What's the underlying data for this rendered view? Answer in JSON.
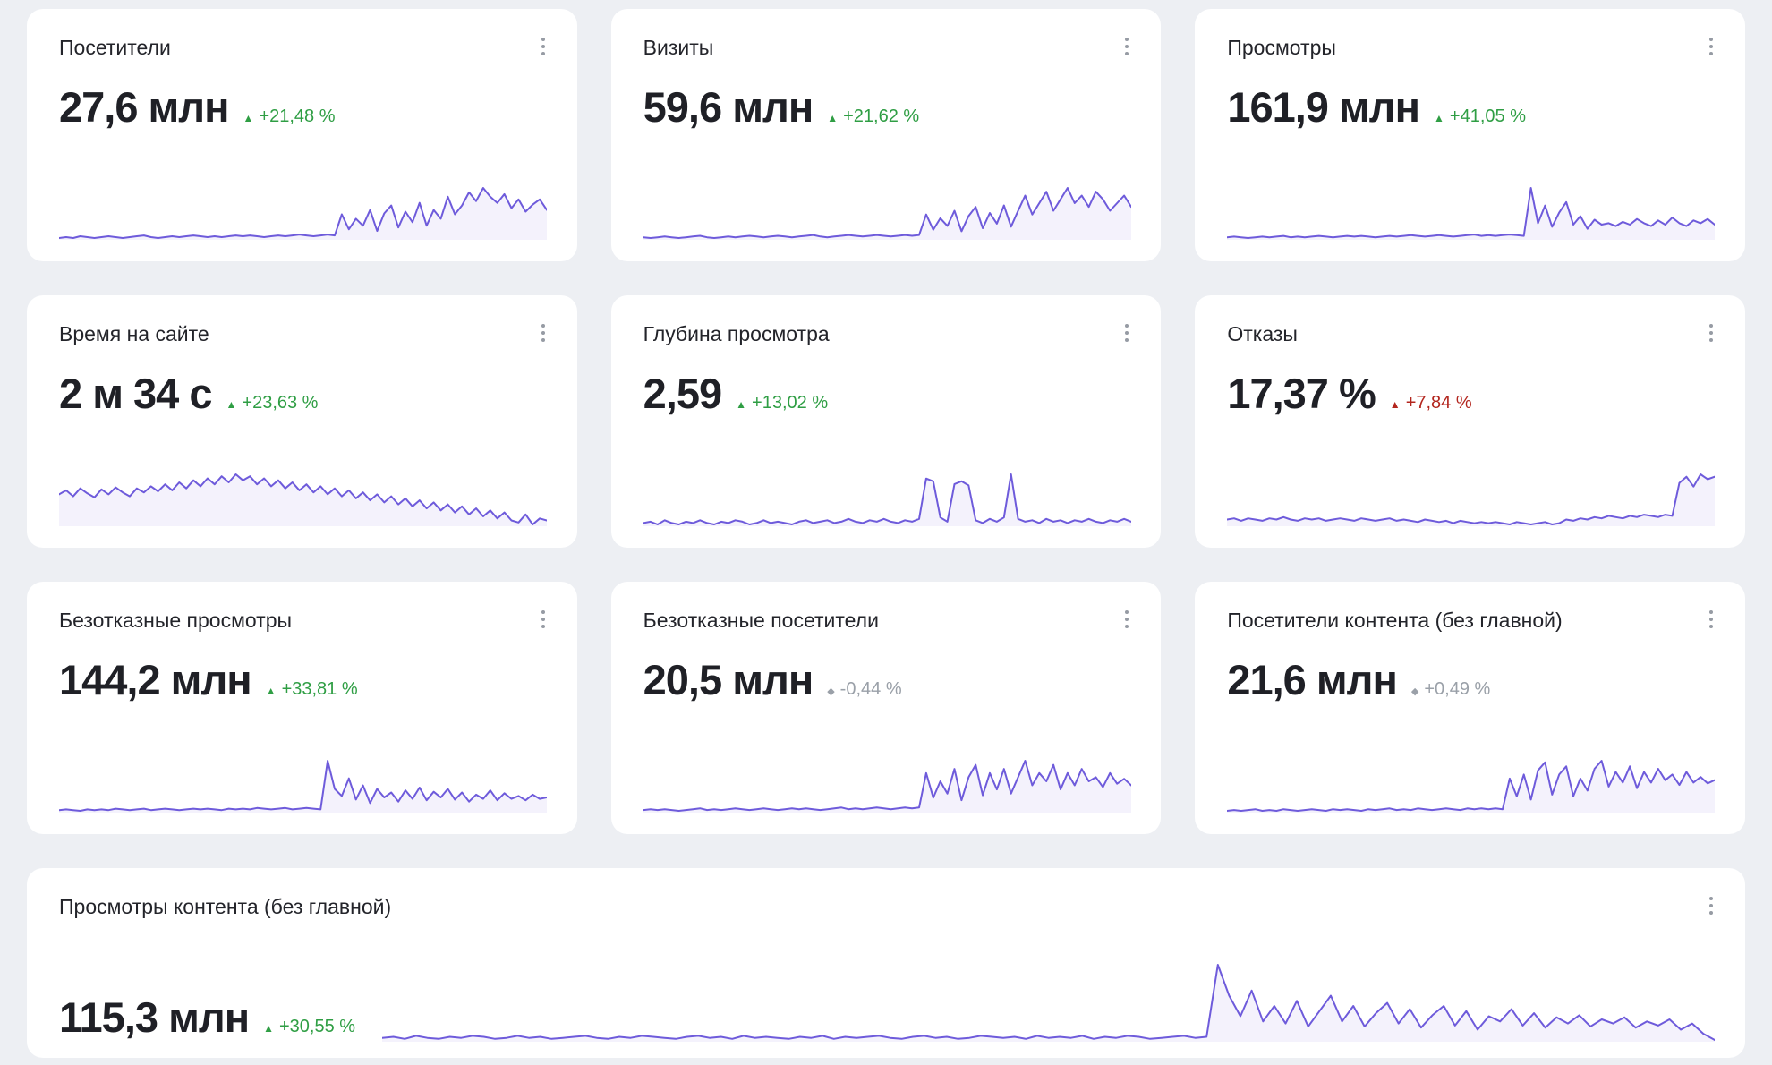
{
  "colors": {
    "spark": "#6e5bdb",
    "positive": "#2f9e44",
    "negative": "#b3261e",
    "neutral": "#9aa0a8",
    "background": "#edeff3"
  },
  "cards": [
    {
      "title": "Посетители",
      "value": "27,6 млн",
      "change": "+21,48 %",
      "marker": "▲",
      "sentiment": "positive",
      "spark": [
        8,
        9,
        8,
        10,
        9,
        8,
        9,
        10,
        9,
        8,
        9,
        10,
        11,
        9,
        8,
        9,
        10,
        9,
        10,
        11,
        10,
        9,
        10,
        9,
        10,
        11,
        10,
        11,
        10,
        9,
        10,
        11,
        10,
        11,
        12,
        11,
        10,
        11,
        12,
        11,
        35,
        18,
        30,
        22,
        40,
        16,
        36,
        45,
        20,
        38,
        26,
        48,
        22,
        40,
        30,
        55,
        35,
        45,
        60,
        50,
        65,
        55,
        48,
        58,
        42,
        52,
        38,
        46,
        52,
        40
      ]
    },
    {
      "title": "Визиты",
      "value": "59,6 млн",
      "change": "+21,62 %",
      "marker": "▲",
      "sentiment": "positive",
      "spark": [
        10,
        9,
        10,
        11,
        10,
        9,
        10,
        11,
        12,
        10,
        9,
        10,
        11,
        10,
        11,
        12,
        11,
        10,
        11,
        12,
        11,
        10,
        11,
        12,
        13,
        11,
        10,
        11,
        12,
        13,
        12,
        11,
        12,
        13,
        12,
        11,
        12,
        13,
        12,
        13,
        40,
        20,
        35,
        25,
        45,
        18,
        38,
        50,
        22,
        42,
        28,
        52,
        24,
        45,
        65,
        40,
        55,
        70,
        45,
        60,
        75,
        55,
        65,
        50,
        70,
        60,
        45,
        55,
        65,
        50
      ]
    },
    {
      "title": "Просмотры",
      "value": "161,9 млн",
      "change": "+41,05 %",
      "marker": "▲",
      "sentiment": "positive",
      "spark": [
        10,
        11,
        10,
        9,
        10,
        11,
        10,
        11,
        12,
        10,
        11,
        10,
        11,
        12,
        11,
        10,
        11,
        12,
        11,
        12,
        11,
        10,
        11,
        12,
        11,
        12,
        13,
        12,
        11,
        12,
        13,
        12,
        11,
        12,
        13,
        14,
        12,
        13,
        12,
        13,
        14,
        13,
        12,
        80,
        30,
        55,
        25,
        45,
        60,
        28,
        40,
        22,
        35,
        28,
        30,
        26,
        32,
        28,
        36,
        30,
        26,
        34,
        28,
        38,
        30,
        26,
        34,
        30,
        36,
        28
      ]
    },
    {
      "title": "Время на сайте",
      "value": "2 м 34 с",
      "change": "+23,63 %",
      "marker": "▲",
      "sentiment": "positive",
      "spark": [
        40,
        44,
        38,
        46,
        41,
        37,
        45,
        40,
        47,
        42,
        38,
        46,
        42,
        48,
        43,
        50,
        44,
        52,
        46,
        54,
        48,
        56,
        50,
        58,
        52,
        60,
        54,
        58,
        50,
        56,
        48,
        54,
        46,
        52,
        44,
        50,
        42,
        48,
        40,
        46,
        38,
        44,
        36,
        42,
        34,
        40,
        32,
        38,
        30,
        36,
        28,
        34,
        26,
        32,
        24,
        30,
        22,
        28,
        20,
        26,
        18,
        24,
        16,
        22,
        14,
        12,
        20,
        10,
        16,
        14
      ]
    },
    {
      "title": "Глубина просмотра",
      "value": "2,59",
      "change": "+13,02 %",
      "marker": "▲",
      "sentiment": "positive",
      "spark": [
        30,
        31,
        29,
        32,
        30,
        29,
        31,
        30,
        32,
        30,
        29,
        31,
        30,
        32,
        31,
        29,
        30,
        32,
        30,
        31,
        30,
        29,
        31,
        32,
        30,
        31,
        32,
        30,
        31,
        33,
        31,
        30,
        32,
        31,
        33,
        31,
        30,
        32,
        31,
        33,
        62,
        60,
        34,
        31,
        58,
        60,
        57,
        32,
        30,
        33,
        31,
        34,
        65,
        33,
        31,
        32,
        30,
        33,
        31,
        32,
        30,
        32,
        31,
        33,
        31,
        30,
        32,
        31,
        33,
        31
      ]
    },
    {
      "title": "Отказы",
      "value": "17,37 %",
      "change": "+7,84 %",
      "marker": "▲",
      "sentiment": "negative",
      "spark": [
        25,
        26,
        24,
        26,
        25,
        24,
        26,
        25,
        27,
        25,
        24,
        26,
        25,
        26,
        24,
        25,
        26,
        25,
        24,
        26,
        25,
        24,
        25,
        26,
        24,
        25,
        24,
        23,
        25,
        24,
        23,
        24,
        22,
        24,
        23,
        22,
        23,
        22,
        23,
        22,
        21,
        23,
        22,
        21,
        22,
        23,
        21,
        22,
        25,
        24,
        26,
        25,
        27,
        26,
        28,
        27,
        26,
        28,
        27,
        29,
        28,
        27,
        29,
        28,
        55,
        60,
        52,
        62,
        58,
        60
      ]
    },
    {
      "title": "Безотказные просмотры",
      "value": "144,2 млн",
      "change": "+33,81 %",
      "marker": "▲",
      "sentiment": "positive",
      "spark": [
        10,
        11,
        10,
        9,
        11,
        10,
        11,
        10,
        12,
        11,
        10,
        11,
        12,
        10,
        11,
        12,
        11,
        10,
        11,
        12,
        11,
        12,
        11,
        10,
        12,
        11,
        12,
        11,
        13,
        12,
        11,
        12,
        13,
        11,
        12,
        13,
        12,
        11,
        80,
        40,
        30,
        55,
        25,
        45,
        20,
        40,
        28,
        35,
        22,
        38,
        26,
        42,
        24,
        36,
        28,
        40,
        25,
        35,
        22,
        32,
        26,
        38,
        24,
        34,
        26,
        30,
        24,
        32,
        26,
        28
      ]
    },
    {
      "title": "Безотказные посетители",
      "value": "20,5 млн",
      "change": "-0,44 %",
      "marker": "◆",
      "sentiment": "neutral",
      "spark": [
        10,
        11,
        10,
        11,
        10,
        9,
        10,
        11,
        12,
        10,
        11,
        10,
        11,
        12,
        11,
        10,
        11,
        12,
        11,
        10,
        11,
        12,
        11,
        12,
        11,
        10,
        11,
        12,
        13,
        11,
        12,
        11,
        12,
        13,
        12,
        11,
        12,
        13,
        12,
        13,
        55,
        25,
        45,
        30,
        60,
        22,
        50,
        65,
        28,
        55,
        35,
        60,
        30,
        50,
        70,
        40,
        55,
        45,
        65,
        35,
        55,
        40,
        60,
        45,
        50,
        38,
        55,
        42,
        48,
        40
      ]
    },
    {
      "title": "Посетители контента (без главной)",
      "value": "21,6 млн",
      "change": "+0,49 %",
      "marker": "◆",
      "sentiment": "neutral",
      "spark": [
        10,
        11,
        10,
        11,
        12,
        10,
        11,
        10,
        12,
        11,
        10,
        11,
        12,
        11,
        10,
        12,
        11,
        12,
        11,
        10,
        12,
        11,
        12,
        13,
        11,
        12,
        11,
        13,
        12,
        11,
        12,
        13,
        12,
        11,
        13,
        12,
        13,
        12,
        13,
        12,
        50,
        28,
        55,
        24,
        60,
        70,
        30,
        55,
        65,
        28,
        50,
        35,
        62,
        72,
        40,
        58,
        45,
        65,
        38,
        58,
        45,
        62,
        48,
        55,
        42,
        58,
        45,
        52,
        44,
        48
      ]
    },
    {
      "title": "Просмотры контента (без главной)",
      "value": "115,3 млн",
      "change": "+30,55 %",
      "marker": "▲",
      "sentiment": "positive",
      "spark": [
        14,
        15,
        13,
        16,
        14,
        13,
        15,
        14,
        16,
        15,
        13,
        14,
        16,
        14,
        15,
        13,
        14,
        15,
        16,
        14,
        13,
        15,
        14,
        16,
        15,
        14,
        13,
        15,
        16,
        14,
        15,
        13,
        16,
        14,
        15,
        14,
        13,
        15,
        14,
        16,
        13,
        15,
        14,
        15,
        16,
        14,
        13,
        15,
        16,
        14,
        15,
        13,
        14,
        16,
        15,
        14,
        15,
        13,
        16,
        14,
        15,
        14,
        16,
        13,
        15,
        14,
        16,
        15,
        13,
        14,
        15,
        16,
        14,
        15,
        85,
        55,
        35,
        60,
        30,
        45,
        28,
        50,
        25,
        40,
        55,
        30,
        45,
        25,
        38,
        48,
        28,
        42,
        24,
        36,
        45,
        26,
        40,
        22,
        35,
        30,
        42,
        26,
        38,
        24,
        34,
        28,
        36,
        25,
        32,
        28,
        34,
        24,
        30,
        26,
        32,
        22,
        28,
        18,
        12
      ]
    }
  ]
}
